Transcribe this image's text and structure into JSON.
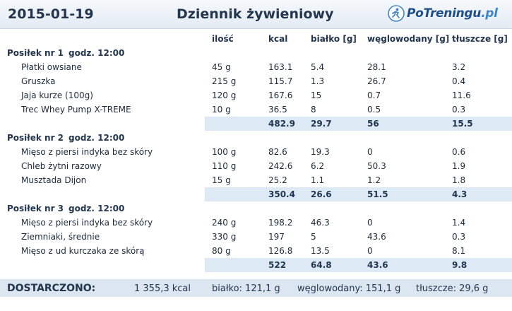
{
  "header": {
    "date": "2015-01-19",
    "title": "Dziennik żywieniowy",
    "logo_main": "PoTreningu",
    "logo_domain": ".pl"
  },
  "columns": {
    "qty": "ilość",
    "kcal": "kcal",
    "protein": "białko [g]",
    "carbs": "węglowodany [g]",
    "fat": "tłuszcze [g]"
  },
  "meals": [
    {
      "name": "Posiłek nr 1",
      "time": "godz. 12:00",
      "items": [
        {
          "name": "Płatki owsiane",
          "qty": "45 g",
          "kcal": "163.1",
          "protein": "5.4",
          "carbs": "28.1",
          "fat": "3.2"
        },
        {
          "name": "Gruszka",
          "qty": "215 g",
          "kcal": "115.7",
          "protein": "1.3",
          "carbs": "26.7",
          "fat": "0.4"
        },
        {
          "name": "Jaja kurze (100g)",
          "qty": "120 g",
          "kcal": "167.6",
          "protein": "15",
          "carbs": "0.7",
          "fat": "11.6"
        },
        {
          "name": "Trec Whey Pump X-TREME",
          "qty": "10 g",
          "kcal": "36.5",
          "protein": "8",
          "carbs": "0.5",
          "fat": "0.3"
        }
      ],
      "totals": {
        "kcal": "482.9",
        "protein": "29.7",
        "carbs": "56",
        "fat": "15.5"
      }
    },
    {
      "name": "Posiłek nr 2",
      "time": "godz. 12:00",
      "items": [
        {
          "name": "Mięso z piersi indyka bez skóry",
          "qty": "100 g",
          "kcal": "82.6",
          "protein": "19.3",
          "carbs": "0",
          "fat": "0.6"
        },
        {
          "name": "Chleb żytni razowy",
          "qty": "110 g",
          "kcal": "242.6",
          "protein": "6.2",
          "carbs": "50.3",
          "fat": "1.9"
        },
        {
          "name": "Musztada Dijon",
          "qty": "15 g",
          "kcal": "25.2",
          "protein": "1.1",
          "carbs": "1.2",
          "fat": "1.8"
        }
      ],
      "totals": {
        "kcal": "350.4",
        "protein": "26.6",
        "carbs": "51.5",
        "fat": "4.3"
      }
    },
    {
      "name": "Posiłek nr 3",
      "time": "godz. 12:00",
      "items": [
        {
          "name": "Mięso z piersi indyka bez skóry",
          "qty": "240 g",
          "kcal": "198.2",
          "protein": "46.3",
          "carbs": "0",
          "fat": "1.4"
        },
        {
          "name": "Ziemniaki, średnie",
          "qty": "330 g",
          "kcal": "197",
          "protein": "5",
          "carbs": "43.6",
          "fat": "0.3"
        },
        {
          "name": "Mięso z ud kurczaka ze skórą",
          "qty": "80 g",
          "kcal": "126.8",
          "protein": "13.5",
          "carbs": "0",
          "fat": "8.1"
        }
      ],
      "totals": {
        "kcal": "522",
        "protein": "64.8",
        "carbs": "43.6",
        "fat": "9.8"
      }
    }
  ],
  "summary": {
    "label": "DOSTARCZONO:",
    "kcal": "1 355,3 kcal",
    "protein": "białko: 121,1 g",
    "carbs": "węglowodany: 151,1 g",
    "fat": "tłuszcze: 29,6 g"
  }
}
